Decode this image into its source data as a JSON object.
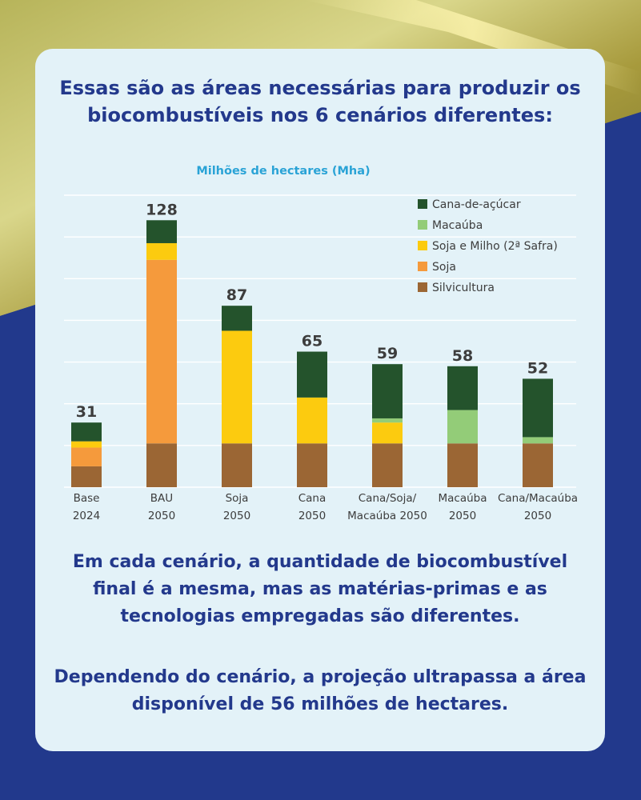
{
  "headline": {
    "line1": "Essas são as áreas necessárias para produzir os",
    "line2": "biocombustíveis nos 6 cenários diferentes:"
  },
  "chart_data": {
    "type": "bar",
    "stacked": true,
    "title": "Milhões de hectares (Mha)",
    "categories": [
      {
        "line1": "Base",
        "line2": "2024"
      },
      {
        "line1": "BAU",
        "line2": "2050"
      },
      {
        "line1": "Soja",
        "line2": "2050"
      },
      {
        "line1": "Cana",
        "line2": "2050"
      },
      {
        "line1": "Cana/Soja/",
        "line2": "Macaúba 2050"
      },
      {
        "line1": "Macaúba",
        "line2": "2050"
      },
      {
        "line1": "Cana/Macaúba",
        "line2": "2050"
      }
    ],
    "totals": [
      31,
      128,
      87,
      65,
      59,
      58,
      52
    ],
    "ylim": [
      0,
      140
    ],
    "series": [
      {
        "name": "Silvicultura",
        "color": "#9b6634",
        "values": [
          10,
          21,
          21,
          21,
          21,
          21,
          21
        ]
      },
      {
        "name": "Soja",
        "color": "#f59a3c",
        "values": [
          9,
          88,
          0,
          0,
          0,
          0,
          0
        ]
      },
      {
        "name": "Soja e Milho (2ª Safra)",
        "color": "#fccb0f",
        "values": [
          3,
          8,
          54,
          22,
          10,
          0,
          0
        ]
      },
      {
        "name": "Macaúba",
        "color": "#93cc78",
        "values": [
          0,
          0,
          0,
          0,
          2,
          16,
          3
        ]
      },
      {
        "name": "Cana-de-açúcar",
        "color": "#24532c",
        "values": [
          9,
          11,
          12,
          22,
          26,
          21,
          28
        ]
      }
    ],
    "legend": [
      "Cana-de-açúcar",
      "Macaúba",
      "Soja e Milho (2ª Safra)",
      "Soja",
      "Silvicultura"
    ],
    "legend_position": "top-right",
    "grid": true
  },
  "body": {
    "p1_line1": "Em cada cenário, a quantidade de biocombustível",
    "p1_line2": "final é a mesma, mas as matérias-primas e as",
    "p1_line3": "tecnologias empregadas são diferentes.",
    "p2_line1": "Dependendo do cenário, a projeção ultrapassa a área",
    "p2_line2": "disponível de 56 milhões de hectares."
  }
}
